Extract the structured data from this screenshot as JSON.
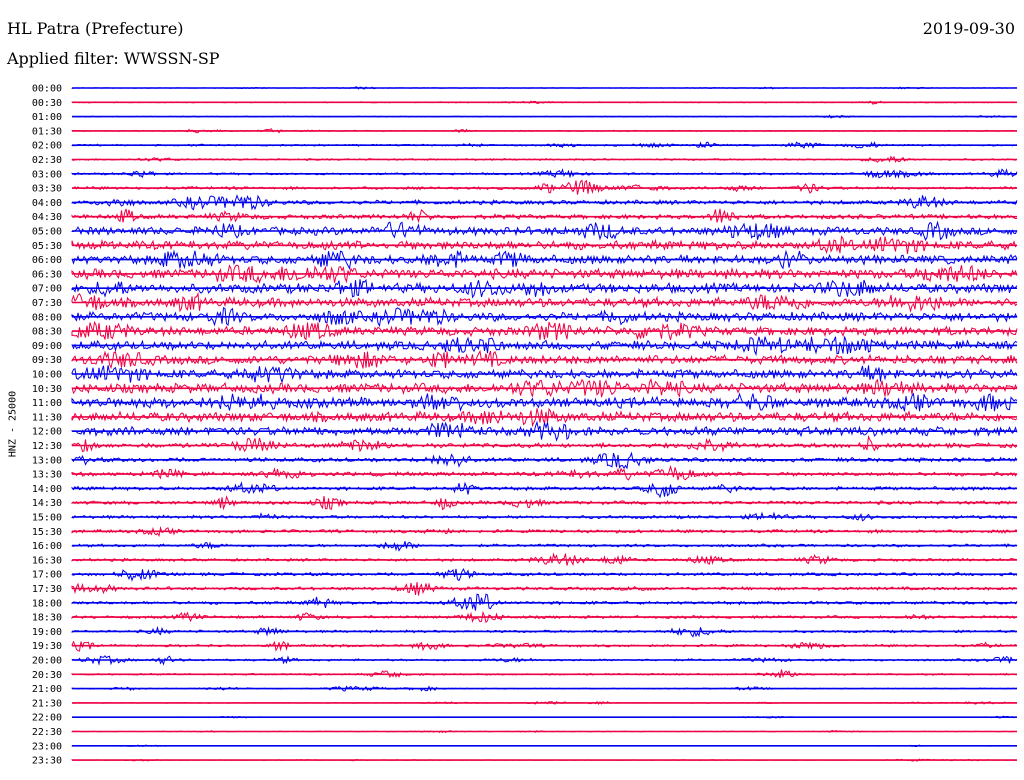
{
  "header": {
    "station": "HL Patra (Prefecture)",
    "filter": "Applied filter: WWSSN-SP",
    "date": "2019-09-30"
  },
  "chart_data": {
    "type": "line",
    "title": "HL Patra (Prefecture)",
    "subtitle": "Applied filter: WWSSN-SP",
    "ylabel": "HNZ - 25000",
    "date": "2019-09-30",
    "row_labels": [
      "00:00",
      "00:30",
      "01:00",
      "01:30",
      "02:00",
      "02:30",
      "03:00",
      "03:30",
      "04:00",
      "04:30",
      "05:00",
      "05:30",
      "06:00",
      "06:30",
      "07:00",
      "07:30",
      "08:00",
      "08:30",
      "09:00",
      "09:30",
      "10:00",
      "10:30",
      "11:00",
      "11:30",
      "12:00",
      "12:30",
      "13:00",
      "13:30",
      "14:00",
      "14:30",
      "15:00",
      "15:30",
      "16:00",
      "16:30",
      "17:00",
      "17:30",
      "18:00",
      "18:30",
      "19:00",
      "19:30",
      "20:00",
      "20:30",
      "21:00",
      "21:30",
      "22:00",
      "22:30",
      "23:00",
      "23:30"
    ],
    "row_noise": [
      0.3,
      0.6,
      0.5,
      0.6,
      1.0,
      1.0,
      1.2,
      1.6,
      2.4,
      2.6,
      4.5,
      5.0,
      5.0,
      5.5,
      5.5,
      5.2,
      5.0,
      5.0,
      5.2,
      5.0,
      5.0,
      5.5,
      5.8,
      5.5,
      5.0,
      2.6,
      2.4,
      2.2,
      2.0,
      2.0,
      1.8,
      1.8,
      1.6,
      1.6,
      1.8,
      1.8,
      1.8,
      1.6,
      1.4,
      1.4,
      1.2,
      1.0,
      0.6,
      0.4,
      0.3,
      0.3,
      0.3,
      0.3
    ],
    "series_colors": [
      "#0000ee",
      "#ee0044"
    ],
    "grid": false
  }
}
